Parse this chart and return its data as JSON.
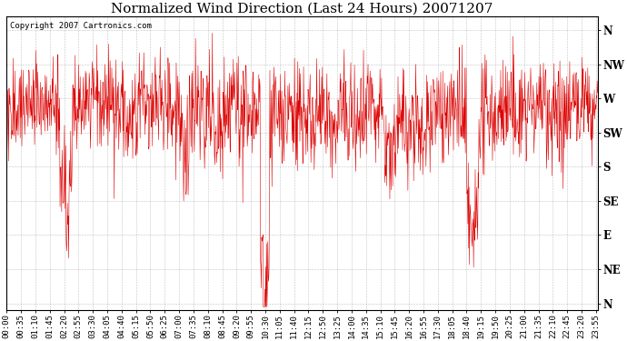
{
  "title": "Normalized Wind Direction (Last 24 Hours) 20071207",
  "copyright_text": "Copyright 2007 Cartronics.com",
  "line_color": "#dd0000",
  "background_color": "#ffffff",
  "grid_color": "#999999",
  "ytick_labels": [
    "N",
    "NW",
    "W",
    "SW",
    "S",
    "SE",
    "E",
    "NE",
    "N"
  ],
  "ytick_values": [
    8,
    7,
    6,
    5,
    4,
    3,
    2,
    1,
    0
  ],
  "ylim": [
    -0.2,
    8.4
  ],
  "title_fontsize": 11,
  "tick_fontsize": 6.5,
  "ylabel_fontsize": 8.5,
  "figwidth": 6.9,
  "figheight": 3.75,
  "dpi": 100,
  "xtick_step_minutes": 35,
  "data_step_minutes": 1,
  "total_minutes": 1440
}
